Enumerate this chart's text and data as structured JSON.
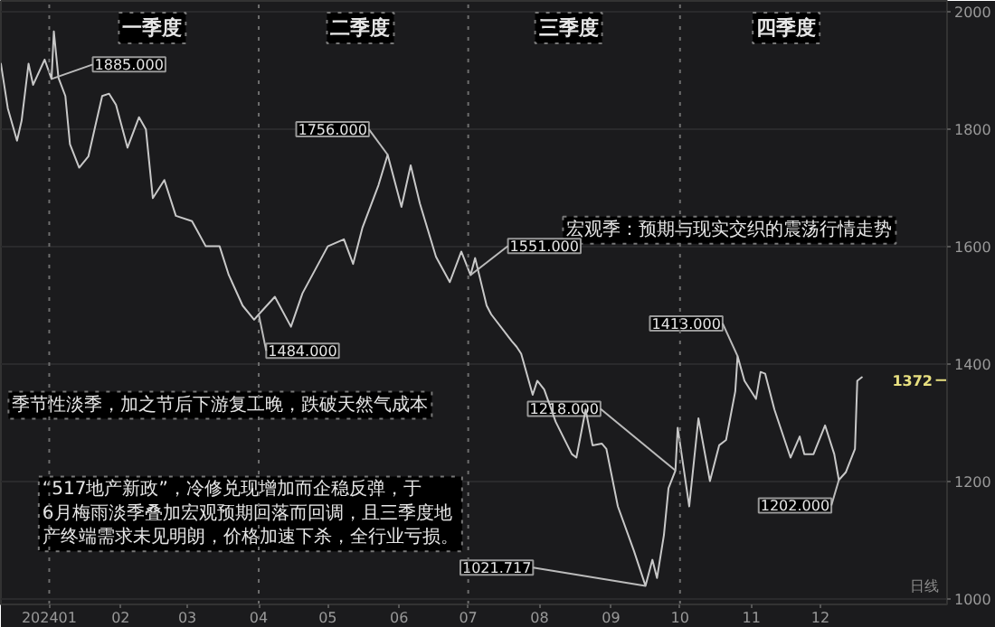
{
  "chart_data": {
    "type": "line",
    "series": [
      {
        "color": "#c8c8c8",
        "x": [
          "2023-12-11",
          "2023-12-14",
          "2023-12-18",
          "2023-12-20",
          "2023-12-23",
          "2023-12-25",
          "2023-12-30",
          "2024-01-02",
          "2024-01-03",
          "2024-01-05",
          "2024-01-08",
          "2024-01-10",
          "2024-01-14",
          "2024-01-18",
          "2024-01-21",
          "2024-01-24",
          "2024-01-27",
          "2024-01-30",
          "2024-02-04",
          "2024-02-09",
          "2024-02-12",
          "2024-02-15",
          "2024-02-20",
          "2024-02-25",
          "2024-03-03",
          "2024-03-09",
          "2024-03-15",
          "2024-03-19",
          "2024-03-25",
          "2024-03-30",
          "2024-04-01",
          "2024-04-08",
          "2024-04-15",
          "2024-04-20",
          "2024-05-01",
          "2024-05-08",
          "2024-05-12",
          "2024-05-16",
          "2024-05-23",
          "2024-05-27",
          "2024-06-02",
          "2024-06-06",
          "2024-06-10",
          "2024-06-17",
          "2024-06-23",
          "2024-06-28",
          "2024-07-02",
          "2024-07-04",
          "2024-07-09",
          "2024-07-11",
          "2024-07-20",
          "2024-07-22",
          "2024-07-24",
          "2024-07-29",
          "2024-07-31",
          "2024-08-03",
          "2024-08-08",
          "2024-08-15",
          "2024-08-17",
          "2024-08-21",
          "2024-08-24",
          "2024-08-28",
          "2024-08-30",
          "2024-09-04",
          "2024-09-11",
          "2024-09-16",
          "2024-09-19",
          "2024-09-21",
          "2024-09-24",
          "2024-09-26",
          "2024-09-29",
          "2024-09-30",
          "2024-10-05",
          "2024-10-09",
          "2024-10-14",
          "2024-10-18",
          "2024-10-21",
          "2024-10-25",
          "2024-10-26",
          "2024-10-29",
          "2024-11-03",
          "2024-11-05",
          "2024-11-07",
          "2024-11-11",
          "2024-11-18",
          "2024-11-22",
          "2024-11-24",
          "2024-11-28",
          "2024-12-03",
          "2024-12-07",
          "2024-12-09",
          "2024-12-12",
          "2024-12-16",
          "2024-12-17",
          "2024-12-19"
        ],
        "values": [
          1911,
          1835,
          1780,
          1814,
          1911,
          1875,
          1918,
          1885,
          1966,
          1887,
          1856,
          1774,
          1734,
          1753,
          1805,
          1856,
          1860,
          1841,
          1768,
          1820,
          1799,
          1682,
          1713,
          1652,
          1643,
          1600,
          1600,
          1551,
          1499,
          1475,
          1484,
          1514,
          1463,
          1520,
          1600,
          1612,
          1570,
          1631,
          1704,
          1756,
          1667,
          1738,
          1673,
          1582,
          1539,
          1591,
          1551,
          1580,
          1499,
          1484,
          1438,
          1429,
          1417,
          1347,
          1371,
          1356,
          1301,
          1246,
          1240,
          1322,
          1261,
          1264,
          1255,
          1157,
          1081,
          1021.717,
          1066,
          1035,
          1108,
          1188,
          1218,
          1291,
          1157,
          1307,
          1200,
          1261,
          1270,
          1353,
          1413,
          1371,
          1340,
          1386,
          1383,
          1322,
          1240,
          1276,
          1246,
          1246,
          1295,
          1246,
          1202,
          1215,
          1255,
          1371,
          1377
        ]
      }
    ],
    "xlim": [
      "2023-12-11",
      "2025-01-25"
    ],
    "ylim": [
      990,
      2018
    ],
    "xticks": [
      {
        "value": "2024-01-01",
        "label": "202401"
      },
      {
        "value": "2024-02-01",
        "label": "02"
      },
      {
        "value": "2024-03-01",
        "label": "03"
      },
      {
        "value": "2024-04-01",
        "label": "04"
      },
      {
        "value": "2024-05-01",
        "label": "05"
      },
      {
        "value": "2024-06-01",
        "label": "06"
      },
      {
        "value": "2024-07-01",
        "label": "07"
      },
      {
        "value": "2024-08-01",
        "label": "08"
      },
      {
        "value": "2024-09-01",
        "label": "09"
      },
      {
        "value": "2024-10-01",
        "label": "10"
      },
      {
        "value": "2024-11-01",
        "label": "11"
      },
      {
        "value": "2024-12-01",
        "label": "12"
      }
    ],
    "yticks": [
      1000,
      1200,
      1400,
      1600,
      1800,
      2000
    ],
    "grid": "y",
    "marker": "none",
    "line_style": "solid",
    "ref_lines": [
      {
        "axis": "x",
        "value": "2024-01-01",
        "color": "#6e6e6e",
        "line_style": "dotted"
      },
      {
        "axis": "x",
        "value": "2024-04-01",
        "color": "#6e6e6e",
        "line_style": "dotted"
      },
      {
        "axis": "x",
        "value": "2024-07-01",
        "color": "#6e6e6e",
        "line_style": "dotted"
      },
      {
        "axis": "x",
        "value": "2024-10-01",
        "color": "#6e6e6e",
        "line_style": "dotted"
      }
    ],
    "annotations": [
      "一季度",
      "二季度",
      "三季度",
      "四季度",
      "季节性淡季，加之节后下游复工晚，跌破天然气成本",
      "宏观季：预期与现实交织的震荡行情走势",
      "“517地产新政”，冷修兑现增加而企稳反弹，于6月梅雨淡季叠加宏观预期回落而回调，且三季度地产终端需求未见明朗，价格加速下杀，全行业亏损。",
      "日线",
      {
        "text": "1885.000",
        "x": "2024-01-02",
        "y": 1885
      },
      {
        "text": "1756.000",
        "x": "2024-05-27",
        "y": 1756
      },
      {
        "text": "1551.000",
        "x": "2024-07-02",
        "y": 1551
      },
      {
        "text": "1484.000",
        "x": "2024-04-01",
        "y": 1484
      },
      {
        "text": "1218.000",
        "x": "2024-09-29",
        "y": 1218
      },
      {
        "text": "1021.717",
        "x": "2024-09-16",
        "y": 1021.717
      },
      {
        "text": "1413.000",
        "x": "2024-10-26",
        "y": 1413
      },
      {
        "text": "1202.000",
        "x": "2024-12-09",
        "y": 1202
      },
      {
        "text": "1372",
        "x": "2024-12-19",
        "y": 1372
      }
    ]
  }
}
